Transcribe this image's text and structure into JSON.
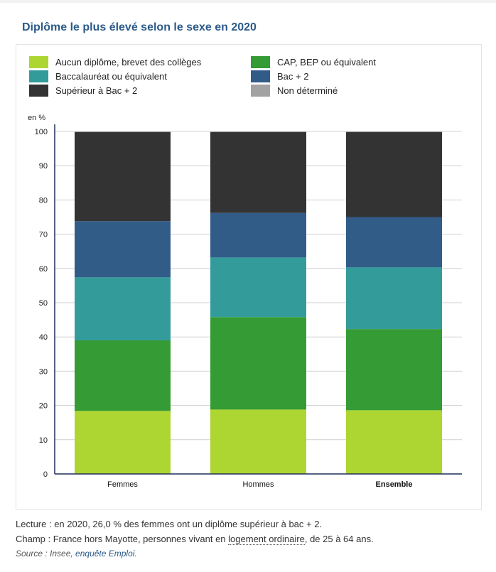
{
  "title": "Diplôme le plus élevé selon le sexe en 2020",
  "colors": {
    "aucun": "#aed632",
    "cap": "#359b34",
    "bac": "#339c9b",
    "bac2": "#325c88",
    "sup": "#333333",
    "nd": "#a2a2a2"
  },
  "chart_data": {
    "type": "bar",
    "stacked": true,
    "title": "Diplôme le plus élevé selon le sexe en 2020",
    "ylabel": "en %",
    "ylim": [
      0,
      100
    ],
    "yticks": [
      "0",
      "10",
      "20",
      "30",
      "40",
      "50",
      "60",
      "70",
      "80",
      "90",
      "100"
    ],
    "grid": true,
    "legend_position": "top",
    "categories": [
      "Femmes",
      "Hommes",
      "Ensemble"
    ],
    "series": [
      {
        "name": "Aucun diplôme, brevet des collèges",
        "color_key": "aucun",
        "values": [
          18.4,
          18.8,
          18.6
        ]
      },
      {
        "name": "CAP, BEP ou équivalent",
        "color_key": "cap",
        "values": [
          20.6,
          27.0,
          23.7
        ]
      },
      {
        "name": "Baccalauréat ou équivalent",
        "color_key": "bac",
        "values": [
          18.4,
          17.4,
          18.0
        ]
      },
      {
        "name": "Bac + 2",
        "color_key": "bac2",
        "values": [
          16.4,
          13.0,
          14.7
        ]
      },
      {
        "name": "Supérieur à Bac + 2",
        "color_key": "sup",
        "values": [
          26.0,
          23.6,
          24.8
        ]
      },
      {
        "name": "Non déterminé",
        "color_key": "nd",
        "values": [
          0.2,
          0.2,
          0.2
        ]
      }
    ]
  },
  "notes": {
    "lecture": "Lecture : en 2020, 26,0 % des femmes ont un diplôme supérieur à bac + 2.",
    "champ_prefix": "Champ : France hors Mayotte, personnes vivant en ",
    "champ_link": "logement ordinaire",
    "champ_suffix": ", de 25 à 64 ans.",
    "source_prefix": "Source : Insee, ",
    "source_link": "enquête Emploi",
    "source_suffix": "."
  }
}
